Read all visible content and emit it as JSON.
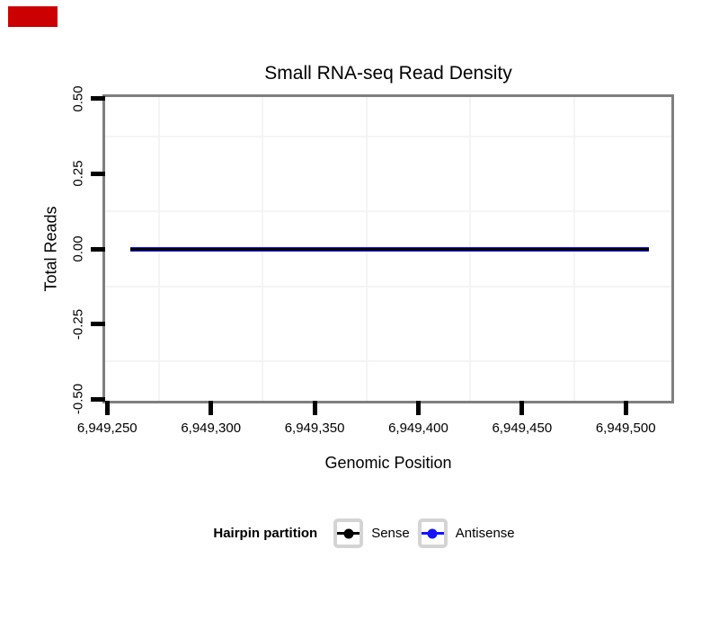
{
  "marker": {
    "color": "#cc0000"
  },
  "chart_data": {
    "type": "line",
    "title": "Small RNA-seq Read Density",
    "xlabel": "Genomic Position",
    "ylabel": "Total Reads",
    "xlim": [
      6949249,
      6949522
    ],
    "ylim": [
      -0.505,
      0.505
    ],
    "x_ticks": [
      {
        "value": 6949250,
        "label": "6,949,250"
      },
      {
        "value": 6949300,
        "label": "6,949,300"
      },
      {
        "value": 6949350,
        "label": "6,949,350"
      },
      {
        "value": 6949400,
        "label": "6,949,400"
      },
      {
        "value": 6949450,
        "label": "6,949,450"
      },
      {
        "value": 6949500,
        "label": "6,949,500"
      }
    ],
    "y_ticks": [
      {
        "value": 0.5,
        "label": "0.50"
      },
      {
        "value": 0.25,
        "label": "0.25"
      },
      {
        "value": 0.0,
        "label": "0.00"
      },
      {
        "value": -0.25,
        "label": "-0.25"
      },
      {
        "value": -0.5,
        "label": "-0.50"
      }
    ],
    "grid": {
      "major": "none",
      "minor_color": "#f4f4f4"
    },
    "panel_border_color": "#7f7f7f",
    "series": [
      {
        "name": "Sense",
        "color": "#000000",
        "stroke_width": 3,
        "x": [
          6949261,
          6949511
        ],
        "y": [
          0,
          0
        ]
      },
      {
        "name": "Antisense",
        "color": "#1414ff",
        "stroke_width": 5,
        "x": [
          6949261,
          6949511
        ],
        "y": [
          0,
          0
        ]
      }
    ],
    "legend": {
      "title": "Hairpin partition",
      "position": "bottom",
      "key_border_color": "#d4d4d4",
      "entries": [
        {
          "label": "Sense",
          "color": "#000000"
        },
        {
          "label": "Antisense",
          "color": "#1414ff"
        }
      ]
    }
  }
}
